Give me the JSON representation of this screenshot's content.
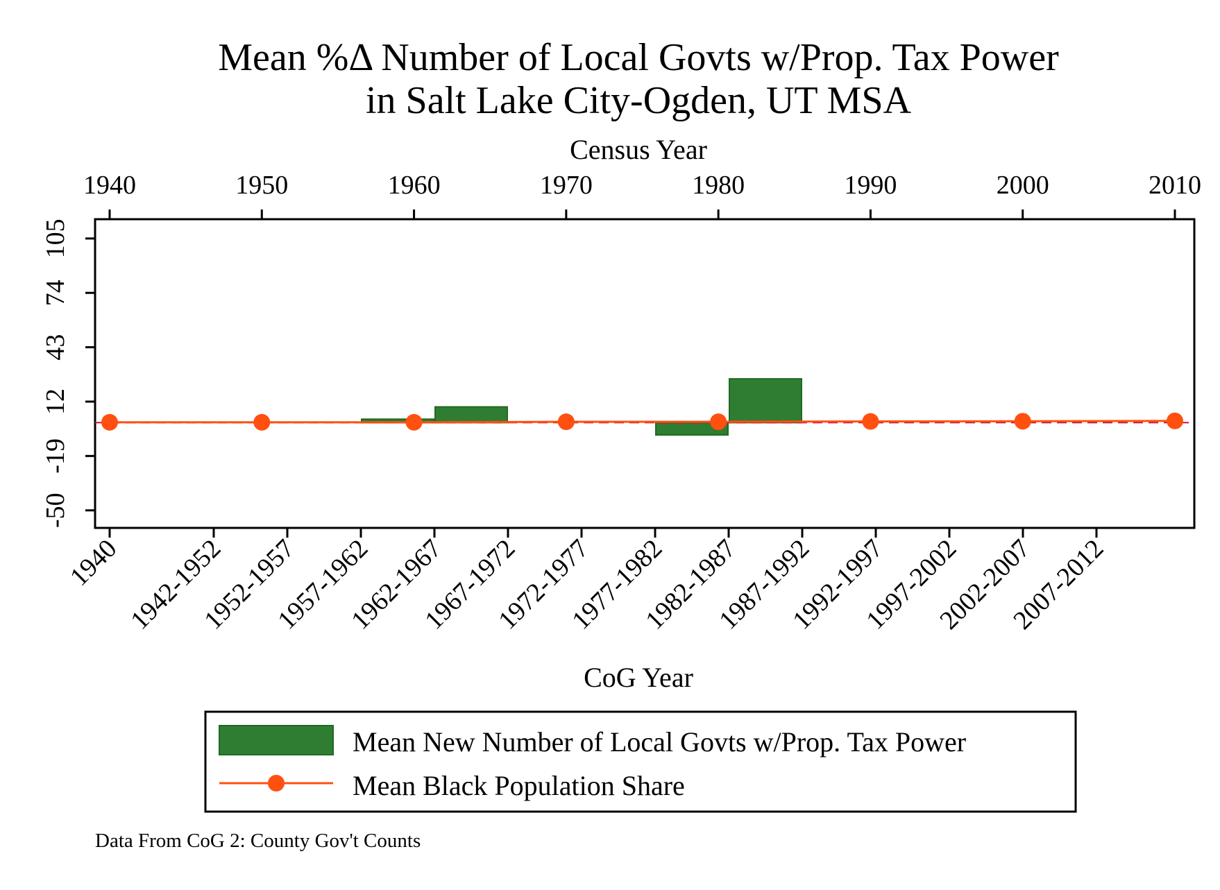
{
  "chart_data": {
    "type": "bar",
    "title": [
      "Mean %Δ Number of Local Govts w/Prop. Tax Power",
      "in Salt Lake City-Ogden, UT MSA"
    ],
    "top_axis": {
      "label": "Census Year",
      "ticks": [
        "1940",
        "1950",
        "1960",
        "1970",
        "1980",
        "1990",
        "2000",
        "2010"
      ]
    },
    "bottom_axis": {
      "label": "CoG Year",
      "ticks": [
        "1940",
        "1942-1952",
        "1952-1957",
        "1957-1962",
        "1962-1967",
        "1967-1972",
        "1972-1977",
        "1977-1982",
        "1982-1987",
        "1987-1992",
        "1992-1997",
        "1997-2002",
        "2002-2007",
        "2007-2012"
      ]
    },
    "y_axis": {
      "ticks": [
        -50,
        -19,
        12,
        43,
        74,
        105
      ],
      "ylim": [
        -60,
        116
      ]
    },
    "bars": {
      "name": "Mean New Number of Local Govts w/Prop. Tax Power",
      "color": "#2e7d32",
      "edge_color": "#1e6b1e",
      "categories": [
        "1940",
        "1942-1952",
        "1952-1957",
        "1957-1962",
        "1962-1967",
        "1967-1972",
        "1972-1977",
        "1977-1982",
        "1982-1987",
        "1987-1992",
        "1992-1997",
        "1997-2002",
        "2002-2007",
        "2007-2012"
      ],
      "values": [
        0,
        0,
        0,
        0,
        2,
        9,
        0,
        0,
        -7,
        25,
        0,
        0,
        0,
        0
      ]
    },
    "line": {
      "name": "Mean Black Population Share",
      "color": "#ff5010",
      "x": [
        "1940",
        "1950",
        "1960",
        "1970",
        "1980",
        "1990",
        "2000",
        "2010"
      ],
      "values": [
        0.2,
        0.2,
        0.2,
        0.5,
        0.5,
        0.7,
        0.8,
        1.0
      ]
    },
    "reference_line": {
      "value": 0,
      "color": "#cc1040",
      "style": "dashed"
    },
    "legend_position": "bottom",
    "note": "Data From CoG 2: County Gov't Counts"
  }
}
